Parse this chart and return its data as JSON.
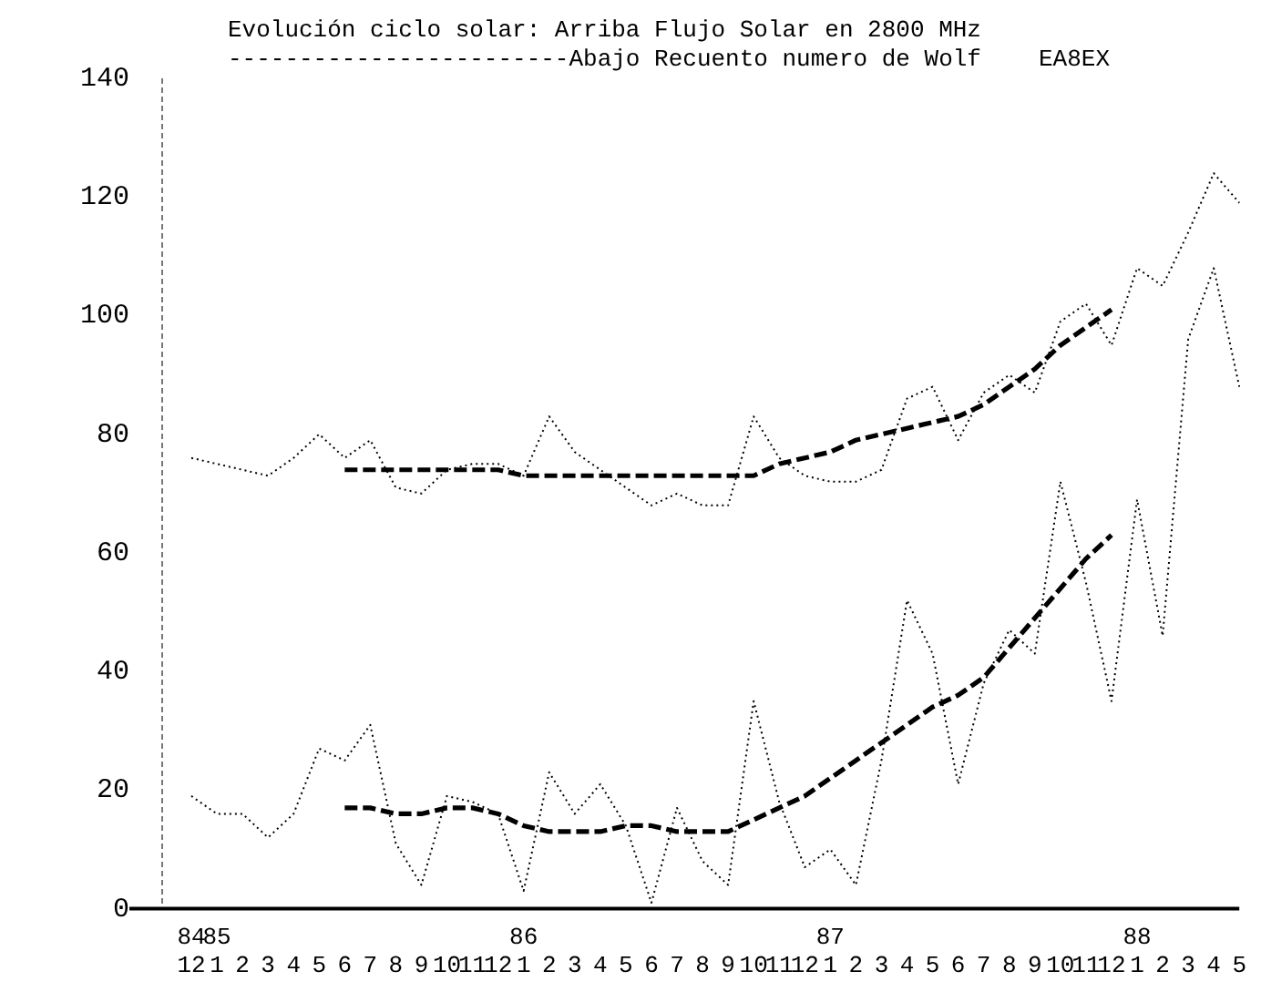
{
  "chart_data": {
    "type": "line",
    "title": "Evolución ciclo solar: Arriba Flujo Solar en 2800 MHz",
    "subtitle": "------------------------Abajo Recuento numero de Wolf",
    "annotations": [
      "EA8EX"
    ],
    "categories": [
      "84\n12",
      "85\n1",
      "2",
      "3",
      "4",
      "5",
      "6",
      "7",
      "8",
      "9",
      "10",
      "11",
      "12",
      "86\n1",
      "2",
      "3",
      "4",
      "5",
      "6",
      "7",
      "8",
      "9",
      "10",
      "11",
      "12",
      "87\n1",
      "2",
      "3",
      "4",
      "5",
      "6",
      "7",
      "8",
      "9",
      "10",
      "11",
      "12",
      "88\n1",
      "2",
      "3",
      "4",
      "5"
    ],
    "series": [
      {
        "color": "#000000",
        "line_style": "dotted",
        "values": [
          76,
          75,
          74,
          73,
          76,
          80,
          76,
          79,
          71,
          70,
          74,
          75,
          75,
          73,
          83,
          77,
          74,
          71,
          68,
          70,
          68,
          68,
          83,
          76,
          73,
          72,
          72,
          74,
          86,
          88,
          79,
          87,
          90,
          87,
          99,
          102,
          95,
          108,
          105,
          114,
          124,
          119
        ]
      },
      {
        "color": "#000000",
        "line_style": "dotted",
        "values": [
          19,
          16,
          16,
          12,
          16,
          27,
          25,
          31,
          11,
          4,
          19,
          18,
          16,
          3,
          23,
          16,
          21,
          14,
          1,
          17,
          8,
          4,
          35,
          18,
          7,
          10,
          4,
          25,
          52,
          43,
          21,
          38,
          47,
          43,
          72,
          55,
          35,
          69,
          46,
          96,
          108,
          88
        ]
      },
      {
        "color": "#000000",
        "line_style": "dashed",
        "values": [
          null,
          null,
          null,
          null,
          null,
          null,
          74,
          74,
          74,
          74,
          74,
          74,
          74,
          73,
          73,
          73,
          73,
          73,
          73,
          73,
          73,
          73,
          73,
          75,
          76,
          77,
          79,
          80,
          81,
          82,
          83,
          85,
          88,
          91,
          95,
          98,
          101,
          null,
          null,
          null,
          null,
          null
        ]
      },
      {
        "color": "#000000",
        "line_style": "dashed",
        "values": [
          null,
          null,
          null,
          null,
          null,
          null,
          17,
          17,
          16,
          16,
          17,
          17,
          16,
          14,
          13,
          13,
          13,
          14,
          14,
          13,
          13,
          13,
          15,
          17,
          19,
          22,
          25,
          28,
          31,
          34,
          36,
          39,
          44,
          49,
          54,
          59,
          63,
          null,
          null,
          null,
          null,
          null
        ]
      }
    ],
    "ylim": [
      0,
      140
    ],
    "yticks": [
      0,
      20,
      40,
      60,
      80,
      100,
      120,
      140
    ],
    "grid": false,
    "legend": false,
    "marker": "none"
  }
}
